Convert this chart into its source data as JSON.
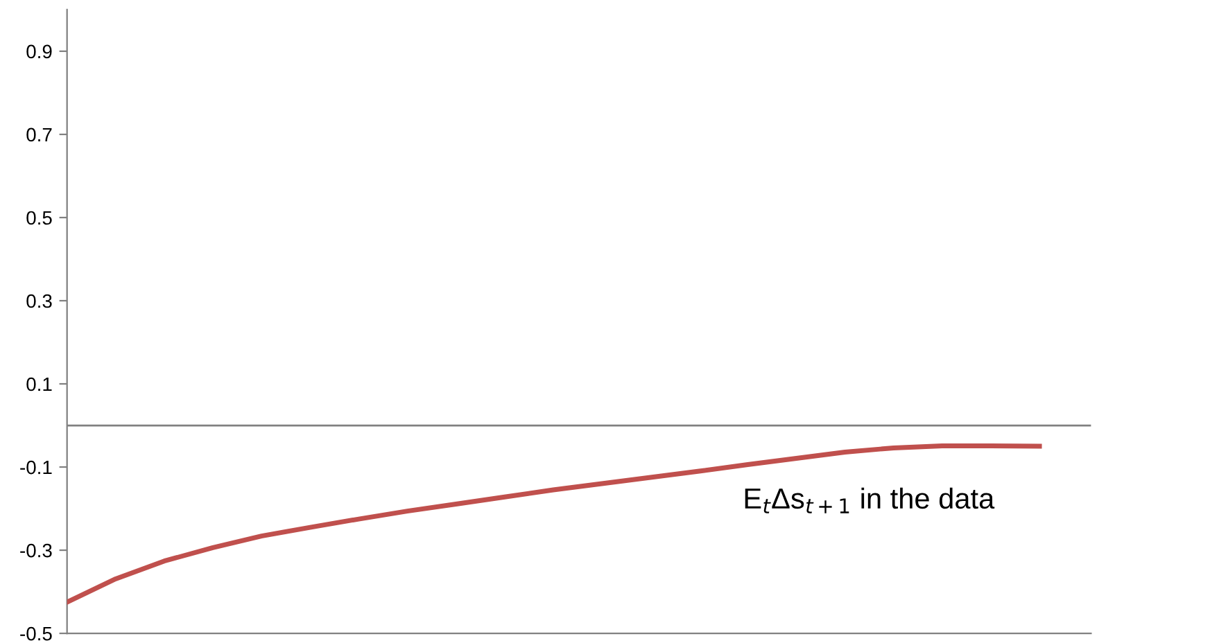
{
  "chart_data": {
    "type": "line",
    "categories": [
      null,
      null,
      null,
      null,
      null,
      null,
      null,
      null,
      null,
      null,
      null,
      null,
      null,
      null,
      null,
      null,
      null,
      null,
      null,
      null,
      null
    ],
    "series": [
      {
        "color": "#c0504d",
        "values": [
          -0.425,
          -0.369,
          -0.326,
          -0.294,
          -0.266,
          -0.245,
          -0.225,
          -0.206,
          -0.189,
          -0.172,
          -0.155,
          -0.14,
          -0.125,
          -0.11,
          -0.094,
          -0.079,
          -0.064,
          -0.054,
          -0.049,
          -0.049,
          -0.05
        ]
      }
    ],
    "ylim": [
      -0.5,
      1.0
    ],
    "yticks": [
      -0.5,
      -0.3,
      -0.1,
      0.1,
      0.3,
      0.5,
      0.7,
      0.9
    ],
    "ref_lines": [
      {
        "axis": "y",
        "value": 0,
        "color": "#808080"
      }
    ],
    "annotations": [
      "E$_{t}$Δs$_{t+1}$ in the data"
    ],
    "tick_labels": "y",
    "grid": false,
    "marker": "none",
    "line_style": "solid"
  }
}
